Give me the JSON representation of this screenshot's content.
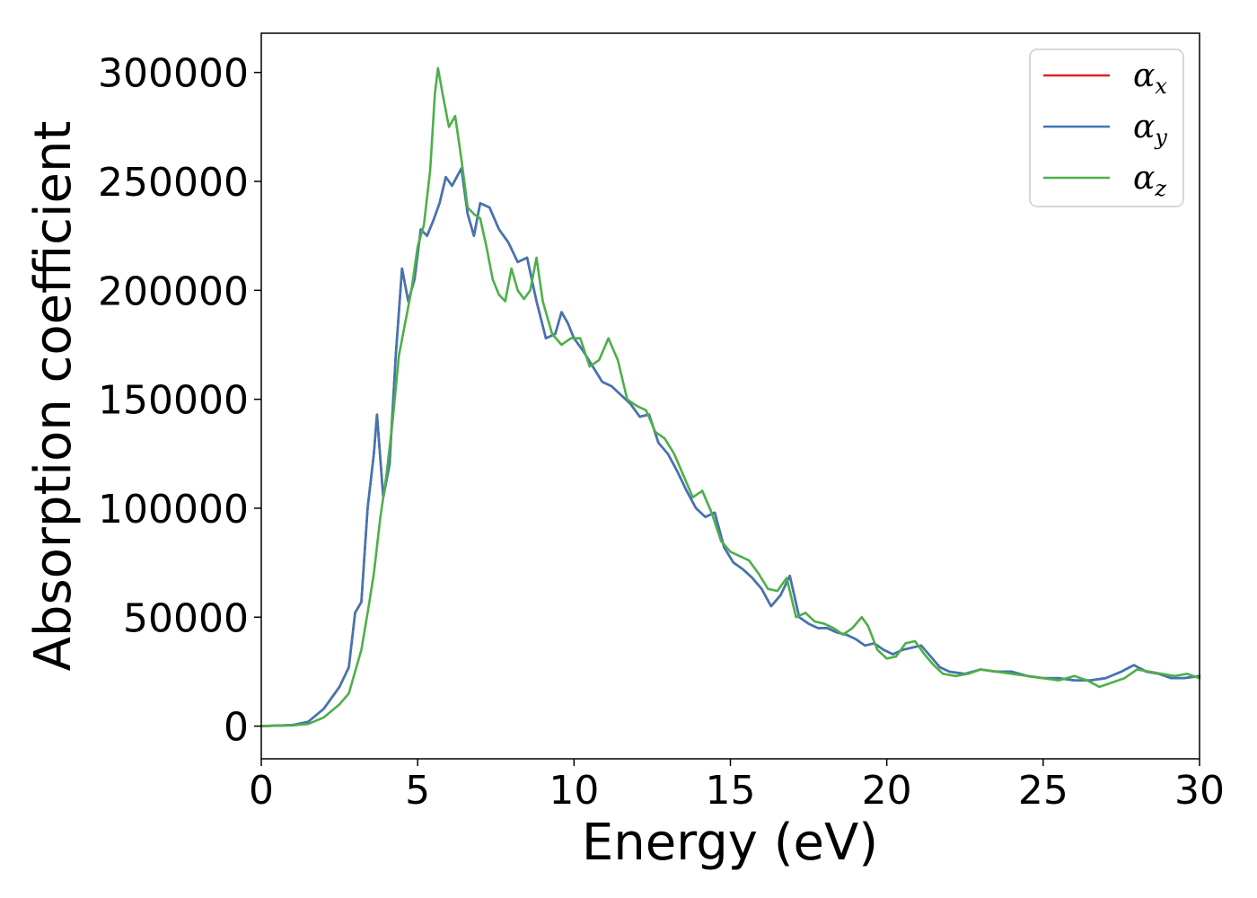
{
  "chart_data": {
    "type": "line",
    "title": "",
    "xlabel": "Energy (eV)",
    "ylabel": "Absorption coefficient",
    "xlim": [
      0,
      30
    ],
    "ylim": [
      -15000,
      318000
    ],
    "xticks": [
      0,
      5,
      10,
      15,
      20,
      25,
      30
    ],
    "yticks": [
      0,
      50000,
      100000,
      150000,
      200000,
      250000,
      300000
    ],
    "xtick_labels": [
      "0",
      "5",
      "10",
      "15",
      "20",
      "25",
      "30"
    ],
    "ytick_labels": [
      "0",
      "50000",
      "100000",
      "150000",
      "200000",
      "250000",
      "300000"
    ],
    "grid": false,
    "legend_position": "top-right",
    "series": [
      {
        "name": "α",
        "subscript": "x",
        "color": "#d62728",
        "x": [
          0,
          1,
          1.5,
          2,
          2.5,
          2.8,
          3.0,
          3.2,
          3.4,
          3.6,
          3.7,
          3.9,
          4.1,
          4.3,
          4.5,
          4.7,
          4.9,
          5.1,
          5.3,
          5.5,
          5.7,
          5.9,
          6.1,
          6.4,
          6.6,
          6.8,
          7.0,
          7.3,
          7.6,
          7.9,
          8.2,
          8.5,
          8.8,
          9.1,
          9.4,
          9.6,
          9.8,
          10.0,
          10.3,
          10.6,
          10.9,
          11.2,
          11.5,
          11.8,
          12.1,
          12.4,
          12.7,
          13.0,
          13.3,
          13.6,
          13.9,
          14.2,
          14.5,
          14.8,
          15.1,
          15.4,
          15.7,
          16.0,
          16.3,
          16.6,
          16.9,
          17.2,
          17.5,
          17.8,
          18.1,
          18.4,
          18.7,
          19.0,
          19.3,
          19.6,
          19.9,
          20.2,
          20.5,
          20.8,
          21.1,
          21.4,
          21.7,
          22.0,
          22.5,
          23.0,
          23.5,
          24.0,
          24.5,
          25.0,
          25.5,
          26.0,
          26.5,
          27.0,
          27.5,
          27.9,
          28.3,
          28.7,
          29.1,
          29.5,
          30.0
        ],
        "y": [
          0,
          500,
          2000,
          8000,
          18000,
          27000,
          52000,
          57000,
          100000,
          125000,
          143000,
          105000,
          120000,
          170000,
          210000,
          195000,
          205000,
          228000,
          225000,
          232000,
          240000,
          252000,
          248000,
          256000,
          235000,
          225000,
          240000,
          238000,
          228000,
          222000,
          213000,
          215000,
          195000,
          178000,
          180000,
          190000,
          185000,
          178000,
          172000,
          165000,
          158000,
          156000,
          152000,
          148000,
          142000,
          143000,
          130000,
          125000,
          117000,
          108000,
          100000,
          96000,
          98000,
          82000,
          75000,
          72000,
          68000,
          63000,
          55000,
          60000,
          69000,
          50000,
          47000,
          45000,
          45000,
          43000,
          42000,
          40000,
          37000,
          38000,
          35000,
          33000,
          35000,
          36000,
          37000,
          32000,
          27000,
          25000,
          24000,
          26000,
          25000,
          25000,
          23000,
          22000,
          22000,
          21000,
          21000,
          22000,
          25000,
          28000,
          25000,
          24000,
          22000,
          22000,
          23000
        ]
      },
      {
        "name": "α",
        "subscript": "y",
        "color": "#3f76b4",
        "x": [
          0,
          1,
          1.5,
          2,
          2.5,
          2.8,
          3.0,
          3.2,
          3.4,
          3.6,
          3.7,
          3.9,
          4.1,
          4.3,
          4.5,
          4.7,
          4.9,
          5.1,
          5.3,
          5.5,
          5.7,
          5.9,
          6.1,
          6.4,
          6.6,
          6.8,
          7.0,
          7.3,
          7.6,
          7.9,
          8.2,
          8.5,
          8.8,
          9.1,
          9.4,
          9.6,
          9.8,
          10.0,
          10.3,
          10.6,
          10.9,
          11.2,
          11.5,
          11.8,
          12.1,
          12.4,
          12.7,
          13.0,
          13.3,
          13.6,
          13.9,
          14.2,
          14.5,
          14.8,
          15.1,
          15.4,
          15.7,
          16.0,
          16.3,
          16.6,
          16.9,
          17.2,
          17.5,
          17.8,
          18.1,
          18.4,
          18.7,
          19.0,
          19.3,
          19.6,
          19.9,
          20.2,
          20.5,
          20.8,
          21.1,
          21.4,
          21.7,
          22.0,
          22.5,
          23.0,
          23.5,
          24.0,
          24.5,
          25.0,
          25.5,
          26.0,
          26.5,
          27.0,
          27.5,
          27.9,
          28.3,
          28.7,
          29.1,
          29.5,
          30.0
        ],
        "y": [
          0,
          500,
          2000,
          8000,
          18000,
          27000,
          52000,
          57000,
          100000,
          125000,
          143000,
          105000,
          120000,
          170000,
          210000,
          195000,
          205000,
          228000,
          225000,
          232000,
          240000,
          252000,
          248000,
          256000,
          235000,
          225000,
          240000,
          238000,
          228000,
          222000,
          213000,
          215000,
          195000,
          178000,
          180000,
          190000,
          185000,
          178000,
          172000,
          165000,
          158000,
          156000,
          152000,
          148000,
          142000,
          143000,
          130000,
          125000,
          117000,
          108000,
          100000,
          96000,
          98000,
          82000,
          75000,
          72000,
          68000,
          63000,
          55000,
          60000,
          69000,
          50000,
          47000,
          45000,
          45000,
          43000,
          42000,
          40000,
          37000,
          38000,
          35000,
          33000,
          35000,
          36000,
          37000,
          32000,
          27000,
          25000,
          24000,
          26000,
          25000,
          25000,
          23000,
          22000,
          22000,
          21000,
          21000,
          22000,
          25000,
          28000,
          25000,
          24000,
          22000,
          22000,
          23000
        ]
      },
      {
        "name": "α",
        "subscript": "z",
        "color": "#4daf4a",
        "x": [
          0,
          1,
          1.5,
          2,
          2.5,
          2.8,
          3.0,
          3.2,
          3.4,
          3.6,
          3.8,
          4.0,
          4.2,
          4.4,
          4.6,
          4.8,
          5.0,
          5.2,
          5.4,
          5.55,
          5.65,
          5.8,
          6.0,
          6.2,
          6.4,
          6.6,
          6.8,
          7.0,
          7.2,
          7.4,
          7.6,
          7.8,
          8.0,
          8.2,
          8.4,
          8.6,
          8.8,
          9.0,
          9.3,
          9.6,
          9.9,
          10.2,
          10.5,
          10.8,
          11.1,
          11.4,
          11.7,
          12.0,
          12.3,
          12.6,
          12.9,
          13.2,
          13.5,
          13.8,
          14.1,
          14.4,
          14.7,
          15.0,
          15.3,
          15.6,
          15.9,
          16.2,
          16.5,
          16.8,
          17.1,
          17.4,
          17.7,
          18.0,
          18.3,
          18.6,
          18.9,
          19.2,
          19.4,
          19.7,
          20.0,
          20.3,
          20.6,
          20.9,
          21.2,
          21.5,
          21.8,
          22.2,
          22.6,
          23.0,
          23.5,
          24.0,
          24.5,
          25.0,
          25.5,
          26.0,
          26.4,
          26.8,
          27.2,
          27.6,
          28.0,
          28.4,
          28.8,
          29.2,
          29.6,
          30.0
        ],
        "y": [
          0,
          300,
          1000,
          4000,
          10000,
          15000,
          25000,
          35000,
          52000,
          70000,
          95000,
          115000,
          140000,
          170000,
          185000,
          200000,
          220000,
          230000,
          255000,
          290000,
          302000,
          290000,
          275000,
          280000,
          260000,
          238000,
          235000,
          233000,
          220000,
          205000,
          198000,
          195000,
          210000,
          200000,
          196000,
          200000,
          215000,
          195000,
          180000,
          175000,
          178000,
          178000,
          165000,
          168000,
          178000,
          168000,
          150000,
          147000,
          145000,
          135000,
          132000,
          125000,
          115000,
          105000,
          108000,
          98000,
          85000,
          80000,
          78000,
          76000,
          70000,
          63000,
          62000,
          68000,
          50000,
          52000,
          48000,
          47000,
          45000,
          42000,
          45000,
          50000,
          46000,
          35000,
          31000,
          32000,
          38000,
          39000,
          33000,
          28000,
          24000,
          23000,
          24000,
          26000,
          25000,
          24000,
          23000,
          22000,
          21000,
          23000,
          21000,
          18000,
          20000,
          22000,
          26000,
          25000,
          24000,
          23000,
          24000,
          22000
        ]
      }
    ]
  }
}
